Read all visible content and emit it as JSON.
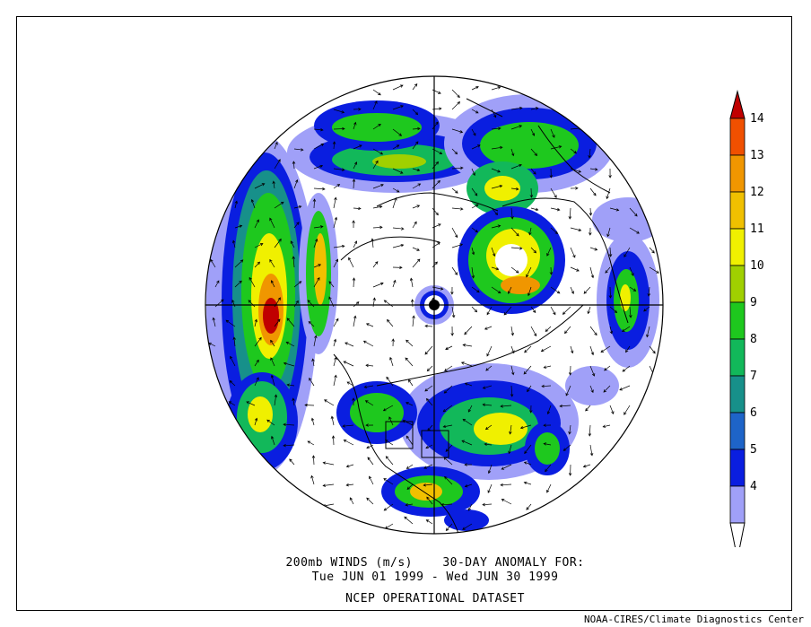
{
  "caption": {
    "line1": "200mb WINDS (m/s)    30-DAY ANOMALY FOR:",
    "line2": "Tue JUN 01 1999 - Wed JUN 30 1999",
    "line3": "NCEP OPERATIONAL DATASET"
  },
  "credit": "NOAA-CIRES/Climate Diagnostics Center",
  "colorbar": {
    "bins": [
      {
        "label": "4",
        "color": "#a0a0f8"
      },
      {
        "label": "5",
        "color": "#0a1ee0"
      },
      {
        "label": "6",
        "color": "#1e64c8"
      },
      {
        "label": "7",
        "color": "#17908a"
      },
      {
        "label": "8",
        "color": "#12b85a"
      },
      {
        "label": "9",
        "color": "#1ec81e"
      },
      {
        "label": "10",
        "color": "#a0d000"
      },
      {
        "label": "11",
        "color": "#f0f000"
      },
      {
        "label": "12",
        "color": "#f0c000"
      },
      {
        "label": "13",
        "color": "#f09600"
      },
      {
        "label": "14",
        "color": "#f05000"
      }
    ],
    "top_color": "#c00000",
    "bottom_color": "#ffffff"
  },
  "map": {
    "projection": "north polar stereographic",
    "field": "200mb wind speed anomaly (m/s)"
  }
}
